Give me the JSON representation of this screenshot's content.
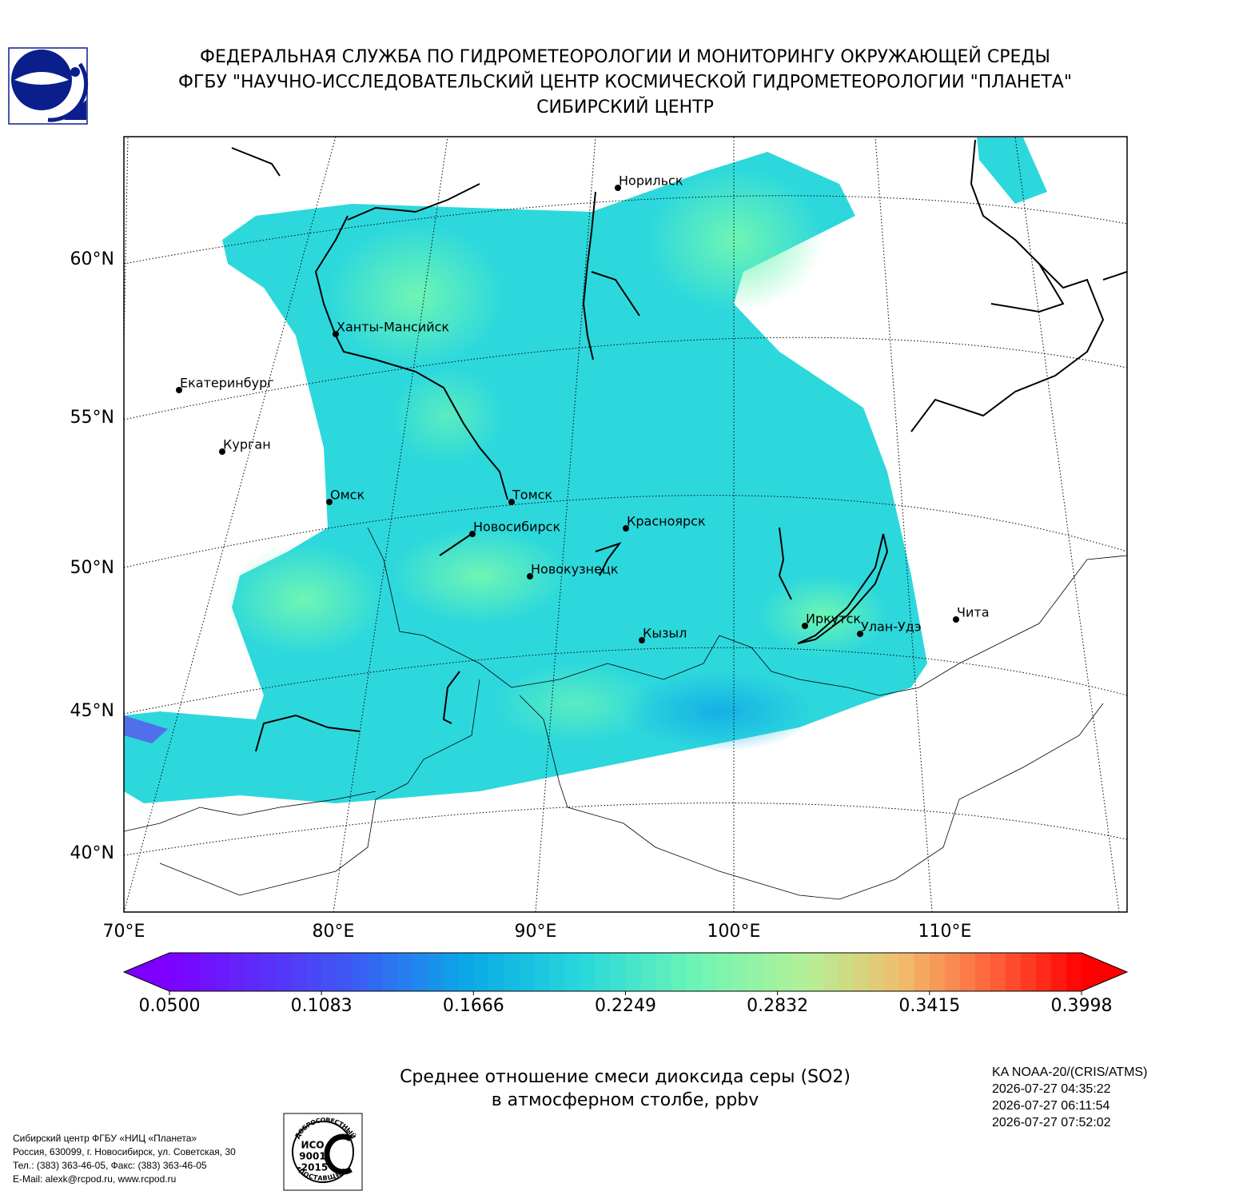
{
  "header": {
    "lines": [
      "ФЕДЕРАЛЬНАЯ СЛУЖБА ПО ГИДРОМЕТЕОРОЛОГИИ И МОНИТОРИНГУ ОКРУЖАЮЩЕЙ СРЕДЫ",
      "ФГБУ \"НАУЧНО-ИССЛЕДОВАТЕЛЬСКИЙ ЦЕНТР КОСМИЧЕСКОЙ ГИДРОМЕТЕОРОЛОГИИ \"ПЛАНЕТА\"",
      "СИБИРСКИЙ ЦЕНТР"
    ]
  },
  "map": {
    "lat_labels": [
      "60°N",
      "55°N",
      "50°N",
      "45°N",
      "40°N"
    ],
    "lon_labels": [
      "70°E",
      "80°E",
      "90°E",
      "100°E",
      "110°E"
    ],
    "cities": [
      "Норильск",
      "Ханты-Мансийск",
      "Екатеринбург",
      "Курган",
      "Омск",
      "Томск",
      "Новосибирск",
      "Красноярск",
      "Новокузнецк",
      "Кызыл",
      "Иркутск",
      "Улан-Удэ",
      "Чита"
    ]
  },
  "colorbar": {
    "ticks": [
      {
        "value": 0.05,
        "label": "0.0500"
      },
      {
        "value": 0.1083,
        "label": "0.1083"
      },
      {
        "value": 0.1666,
        "label": "0.1666"
      },
      {
        "value": 0.2249,
        "label": "0.2249"
      },
      {
        "value": 0.2832,
        "label": "0.2832"
      },
      {
        "value": 0.3415,
        "label": "0.3415"
      },
      {
        "value": 0.3998,
        "label": "0.3998"
      }
    ]
  },
  "title": {
    "lines": [
      "Среднее отношение смеси диоксида серы (SO2)",
      "в атмосферном столбе, ppbv"
    ]
  },
  "satellite": {
    "lines": [
      "KA NOAA-20/(CRIS/ATMS)",
      "2026-07-27 04:35:22",
      "2026-07-27 06:11:54",
      "2026-07-27 07:52:02"
    ]
  },
  "footer": {
    "lines": [
      "Сибирский центр ФГБУ «НИЦ «Планета»",
      "Россия, 630099, г. Новосибирск, ул. Советская, 30",
      "Тел.: (383) 363-46-05, Факс: (383) 363-46-05",
      "E-Mail: alexk@rcpod.ru, www.rcpod.ru"
    ]
  },
  "iso_logo": {
    "top": "ДОБРОСОВЕСТНЫЙ",
    "lines": [
      "ИСО",
      "9001",
      "-2015"
    ],
    "bottom": "ПОСТАВЩИК"
  }
}
